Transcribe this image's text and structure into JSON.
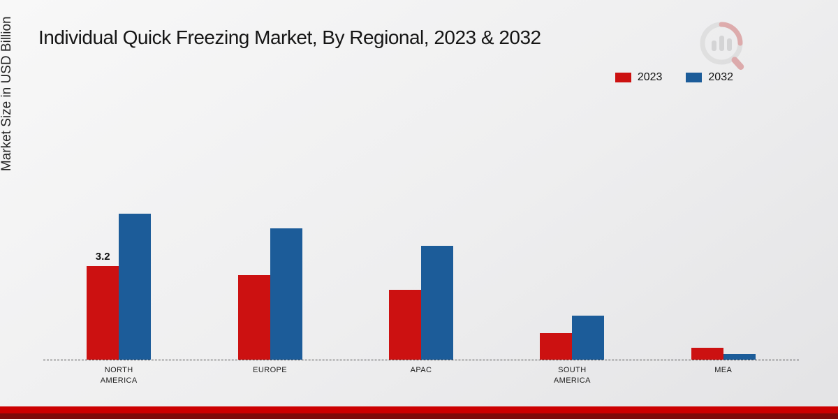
{
  "title": "Individual Quick Freezing Market, By Regional, 2023 & 2032",
  "y_axis_label": "Market Size in USD Billion",
  "legend": [
    {
      "label": "2023",
      "color": "#cc1111"
    },
    {
      "label": "2032",
      "color": "#1c5c99"
    }
  ],
  "footer": {
    "stripe_top_color": "#cc0001",
    "stripe_bottom_color": "#7e0a0a"
  },
  "logo_icon": "bar-chart-magnifier-watermark",
  "chart_data": {
    "type": "bar",
    "title": "Individual Quick Freezing Market, By Regional, 2023 & 2032",
    "xlabel": "",
    "ylabel": "Market Size in USD Billion",
    "categories": [
      "NORTH AMERICA",
      "EUROPE",
      "APAC",
      "SOUTH AMERICA",
      "MEA"
    ],
    "series": [
      {
        "name": "2023",
        "color": "#cc1111",
        "values": [
          3.2,
          2.9,
          2.4,
          0.9,
          0.4
        ]
      },
      {
        "name": "2032",
        "color": "#1c5c99",
        "values": [
          5.0,
          4.5,
          3.9,
          1.5,
          0.2
        ]
      }
    ],
    "annotations": [
      {
        "category": 0,
        "series": 0,
        "text": "3.2"
      }
    ],
    "ylim": [
      0,
      5.5
    ],
    "grid": false,
    "legend_position": "top-right",
    "baseline_style": "dashed"
  }
}
